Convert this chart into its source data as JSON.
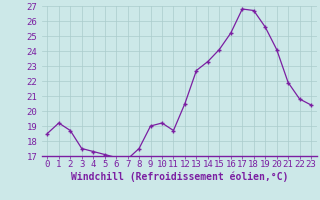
{
  "x": [
    0,
    1,
    2,
    3,
    4,
    5,
    6,
    7,
    8,
    9,
    10,
    11,
    12,
    13,
    14,
    15,
    16,
    17,
    18,
    19,
    20,
    21,
    22,
    23
  ],
  "y": [
    18.5,
    19.2,
    18.7,
    17.5,
    17.3,
    17.1,
    16.9,
    16.8,
    17.5,
    19.0,
    19.2,
    18.7,
    20.5,
    22.7,
    23.3,
    24.1,
    25.2,
    26.8,
    26.7,
    25.6,
    24.1,
    21.9,
    20.8,
    20.4
  ],
  "line_color": "#7b1fa2",
  "marker": "+",
  "marker_color": "#7b1fa2",
  "bg_color": "#cce8e8",
  "grid_color": "#aacccc",
  "axis_color": "#7b1fa2",
  "xlabel": "Windchill (Refroidissement éolien,°C)",
  "xlabel_fontsize": 7,
  "ylim": [
    17,
    27
  ],
  "xlim_min": -0.5,
  "xlim_max": 23.5,
  "yticks": [
    17,
    18,
    19,
    20,
    21,
    22,
    23,
    24,
    25,
    26,
    27
  ],
  "xticks": [
    0,
    1,
    2,
    3,
    4,
    5,
    6,
    7,
    8,
    9,
    10,
    11,
    12,
    13,
    14,
    15,
    16,
    17,
    18,
    19,
    20,
    21,
    22,
    23
  ],
  "tick_fontsize": 6.5,
  "linewidth": 0.9,
  "markersize": 3.5
}
